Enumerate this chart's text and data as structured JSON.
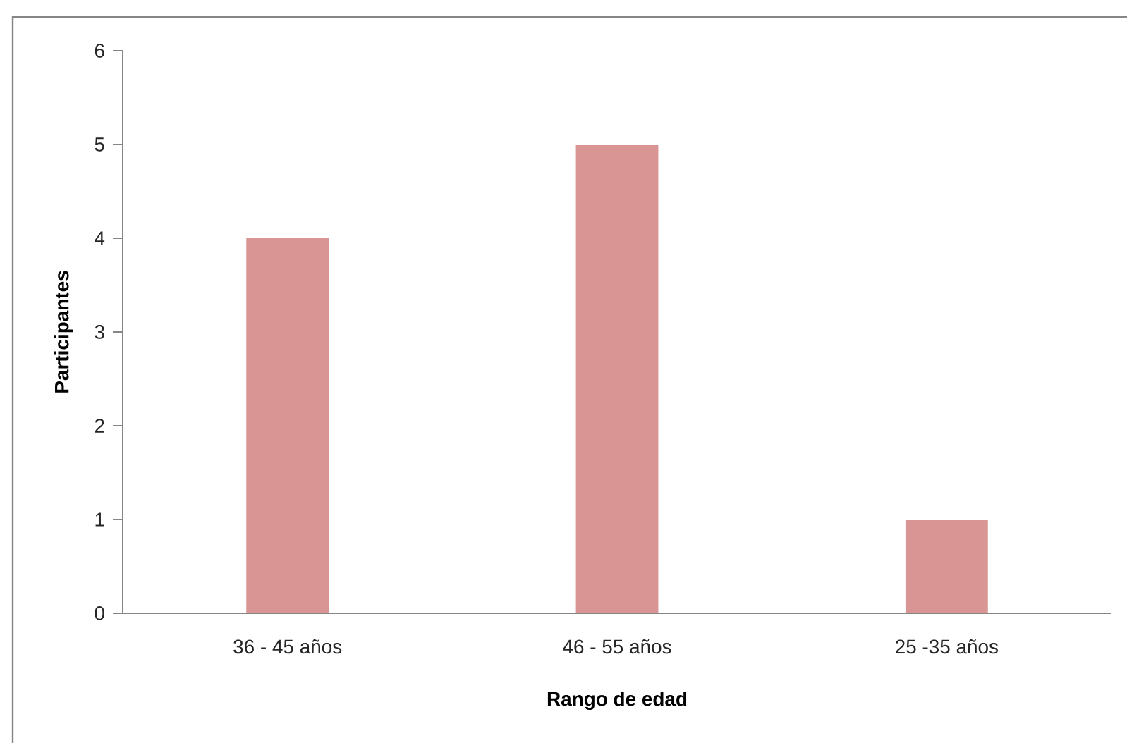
{
  "chart_data": {
    "type": "bar",
    "categories": [
      "36 - 45 años",
      "46 - 55 años",
      "25 -35 años"
    ],
    "values": [
      4,
      5,
      1
    ],
    "color": "#d99594",
    "xlabel": "Rango de edad",
    "ylabel": "Participantes",
    "ylim": [
      0,
      6
    ],
    "yticks": [
      0,
      1,
      2,
      3,
      4,
      5,
      6
    ]
  }
}
